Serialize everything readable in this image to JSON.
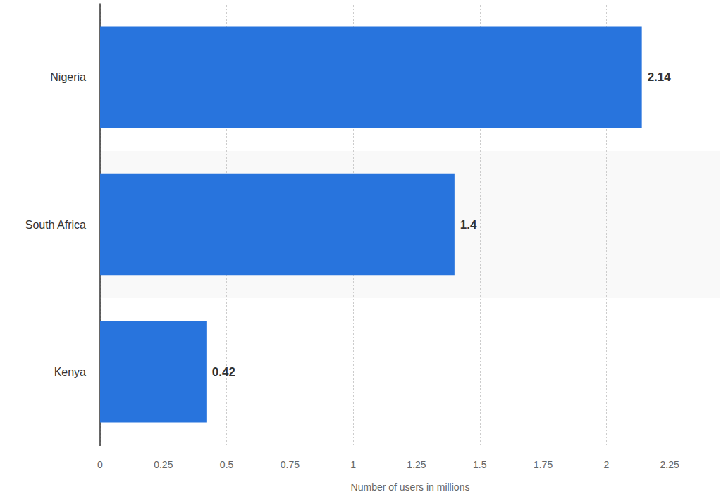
{
  "chart_data": {
    "type": "bar",
    "orientation": "horizontal",
    "categories": [
      "Nigeria",
      "South Africa",
      "Kenya"
    ],
    "values": [
      2.14,
      1.4,
      0.42
    ],
    "color": "#2874dd",
    "xlabel": "Number of users in millions",
    "xlim": [
      0,
      2.45
    ],
    "xticks": [
      0,
      0.25,
      0.5,
      0.75,
      1,
      1.25,
      1.5,
      1.75,
      2,
      2.25
    ],
    "grid": true,
    "data_labels": true
  }
}
